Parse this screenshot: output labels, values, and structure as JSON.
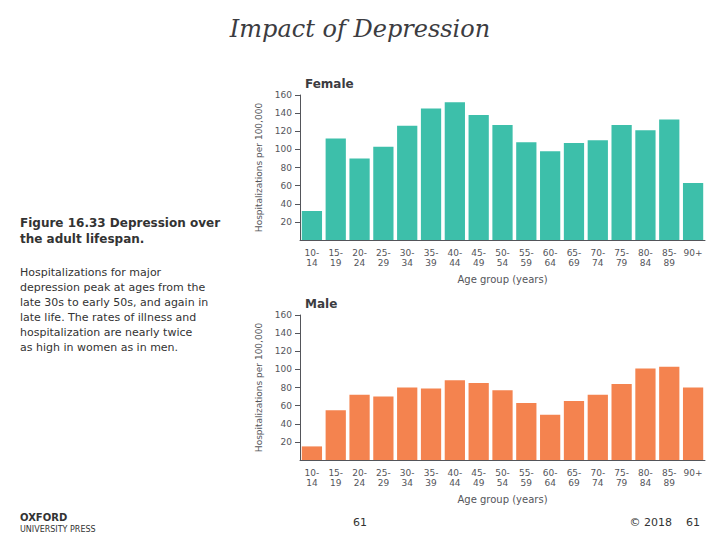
{
  "title": "Impact of Depression",
  "annotations": [
    "Figure 16.33 Depression over\nthe adult lifespan.",
    "Hospitalizations for major\ndepression peak at ages from the\nlate 30s to early 50s, and again in\nlate life. The rates of illness and\nhospitalization are nearly twice\nas high in women as in men.",
    "OXFORD",
    "UNIVERSITY PRESS",
    "61",
    "© 2018    61"
  ],
  "chart_data": [
    {
      "type": "bar",
      "title": "Female",
      "categories": [
        "10-\n14",
        "15-\n19",
        "20-\n24",
        "25-\n29",
        "30-\n34",
        "35-\n39",
        "40-\n44",
        "45-\n49",
        "50-\n54",
        "55-\n59",
        "60-\n64",
        "65-\n69",
        "70-\n74",
        "75-\n79",
        "80-\n84",
        "85-\n89",
        "90+"
      ],
      "values": [
        32,
        112,
        90,
        103,
        126,
        145,
        152,
        138,
        127,
        108,
        98,
        107,
        110,
        127,
        121,
        133,
        63
      ],
      "color": "#3dbfaa",
      "xlabel": "Age group (years)",
      "ylabel": "Hospitalizations per 100,000",
      "ylim": [
        0,
        160
      ],
      "yticks": [
        20,
        40,
        60,
        80,
        100,
        120,
        140,
        160
      ],
      "grid": false
    },
    {
      "type": "bar",
      "title": "Male",
      "categories": [
        "10-\n14",
        "15-\n19",
        "20-\n24",
        "25-\n29",
        "30-\n34",
        "35-\n39",
        "40-\n44",
        "45-\n49",
        "50-\n54",
        "55-\n59",
        "60-\n64",
        "65-\n69",
        "70-\n74",
        "75-\n79",
        "80-\n84",
        "85-\n89",
        "90+"
      ],
      "values": [
        15,
        55,
        72,
        70,
        80,
        79,
        88,
        85,
        77,
        63,
        50,
        65,
        72,
        84,
        101,
        103,
        80
      ],
      "color": "#f4834f",
      "xlabel": "Age group (years)",
      "ylabel": "Hospitalizations per 100,000",
      "ylim": [
        0,
        160
      ],
      "yticks": [
        20,
        40,
        60,
        80,
        100,
        120,
        140,
        160
      ],
      "grid": false
    }
  ]
}
